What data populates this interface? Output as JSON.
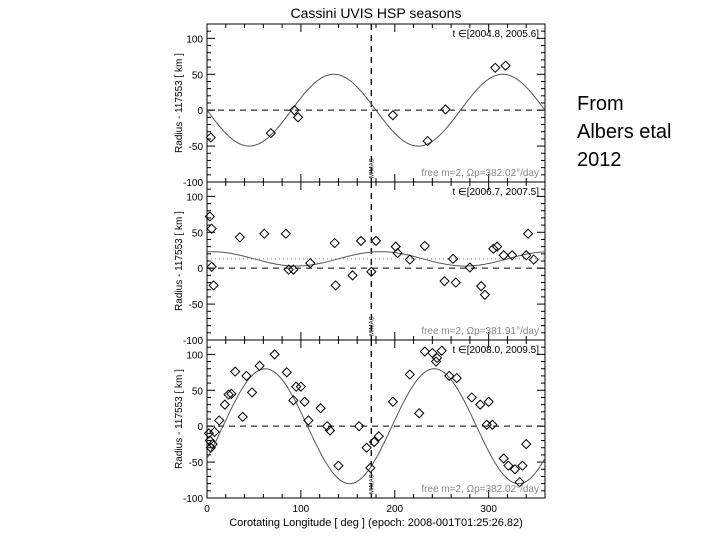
{
  "figure": {
    "title": "Cassini UVIS HSP seasons",
    "xlabel": "Corotating Longitude [ deg ] (epoch: 2008-001T01:25:26.82)",
    "x_tick_labels": [
      "0",
      "100",
      "200",
      "300"
    ],
    "marker_label": "MIMAS"
  },
  "caption": {
    "lines": [
      "From",
      "Albers etal",
      "2012"
    ]
  },
  "chart_data": [
    {
      "type": "scatter",
      "time_range": "t ∈[2004.8, 2005.6]",
      "fit_label": "free m=2, Ωp=382.02°/day",
      "ylabel": "Radius - 117553 [ km ]",
      "xlim": [
        0,
        360
      ],
      "ylim": [
        -100,
        120
      ],
      "y_ticks": [
        -100,
        -50,
        0,
        50,
        100
      ],
      "mimas_longitude": 175,
      "fit": {
        "amplitude": 50,
        "pattern_speed": 382.02,
        "m": 2,
        "peak_longitude": 135
      },
      "points": [
        [
          4,
          -38
        ],
        [
          68,
          -32
        ],
        [
          93,
          0
        ],
        [
          97,
          -10
        ],
        [
          198,
          -7
        ],
        [
          235,
          -43
        ],
        [
          254,
          1
        ],
        [
          307,
          59
        ],
        [
          318,
          62
        ]
      ]
    },
    {
      "type": "scatter",
      "time_range": "t ∈[2006.7, 2007.5]",
      "fit_label": "free m=2, Ωp=381.91°/day",
      "ylabel": "Radius - 117553 [ km ]",
      "xlim": [
        0,
        360
      ],
      "ylim": [
        -100,
        120
      ],
      "y_ticks": [
        -100,
        -50,
        0,
        50,
        100
      ],
      "mimas_longitude": 175,
      "fit": {
        "amplitude": 10,
        "pattern_speed": 381.91,
        "m": 2,
        "peak_longitude": 5,
        "offset": 13
      },
      "points": [
        [
          3,
          72
        ],
        [
          5,
          55
        ],
        [
          5,
          2
        ],
        [
          7,
          -24
        ],
        [
          35,
          43
        ],
        [
          61,
          48
        ],
        [
          84,
          48
        ],
        [
          87,
          -2
        ],
        [
          92,
          -2
        ],
        [
          110,
          7
        ],
        [
          136,
          35
        ],
        [
          137,
          -24
        ],
        [
          155,
          -10
        ],
        [
          164,
          38
        ],
        [
          175,
          -5
        ],
        [
          180,
          38
        ],
        [
          201,
          30
        ],
        [
          203,
          21
        ],
        [
          216,
          12
        ],
        [
          232,
          31
        ],
        [
          253,
          -18
        ],
        [
          262,
          13
        ],
        [
          265,
          -20
        ],
        [
          280,
          1
        ],
        [
          292,
          -25
        ],
        [
          296,
          -37
        ],
        [
          305,
          27
        ],
        [
          309,
          30
        ],
        [
          316,
          18
        ],
        [
          325,
          18
        ],
        [
          340,
          18
        ],
        [
          342,
          48
        ],
        [
          348,
          12
        ]
      ]
    },
    {
      "type": "scatter",
      "time_range": "t ∈[2008.0, 2009.5]",
      "fit_label": "free m=2, Ωp=382.02°/day",
      "ylabel": "Radius - 117553 [ km ]",
      "xlim": [
        0,
        360
      ],
      "ylim": [
        -100,
        120
      ],
      "y_ticks": [
        -100,
        -50,
        0,
        50,
        100
      ],
      "mimas_longitude": 175,
      "fit": {
        "amplitude": 80,
        "pattern_speed": 382.02,
        "m": 2,
        "peak_longitude": 62,
        "offset": 0
      },
      "points": [
        [
          2,
          -10
        ],
        [
          3,
          -20
        ],
        [
          4,
          -30
        ],
        [
          6,
          -25
        ],
        [
          8,
          -8
        ],
        [
          13,
          8
        ],
        [
          19,
          30
        ],
        [
          23,
          44
        ],
        [
          26,
          45
        ],
        [
          30,
          76
        ],
        [
          38,
          13
        ],
        [
          42,
          70
        ],
        [
          48,
          47
        ],
        [
          56,
          84
        ],
        [
          72,
          100
        ],
        [
          85,
          75
        ],
        [
          92,
          36
        ],
        [
          95,
          55
        ],
        [
          100,
          55
        ],
        [
          104,
          34
        ],
        [
          108,
          8
        ],
        [
          121,
          25
        ],
        [
          128,
          0
        ],
        [
          131,
          -6
        ],
        [
          140,
          -55
        ],
        [
          162,
          0
        ],
        [
          170,
          -30
        ],
        [
          174,
          -58
        ],
        [
          178,
          -22
        ],
        [
          183,
          -14
        ],
        [
          198,
          34
        ],
        [
          216,
          72
        ],
        [
          226,
          18
        ],
        [
          232,
          104
        ],
        [
          240,
          102
        ],
        [
          244,
          90
        ],
        [
          245,
          95
        ],
        [
          250,
          105
        ],
        [
          258,
          70
        ],
        [
          266,
          67
        ],
        [
          282,
          40
        ],
        [
          291,
          30
        ],
        [
          298,
          2
        ],
        [
          300,
          34
        ],
        [
          304,
          2
        ],
        [
          316,
          -45
        ],
        [
          321,
          -55
        ],
        [
          328,
          -60
        ],
        [
          333,
          -78
        ],
        [
          336,
          -55
        ],
        [
          340,
          -25
        ]
      ]
    }
  ]
}
